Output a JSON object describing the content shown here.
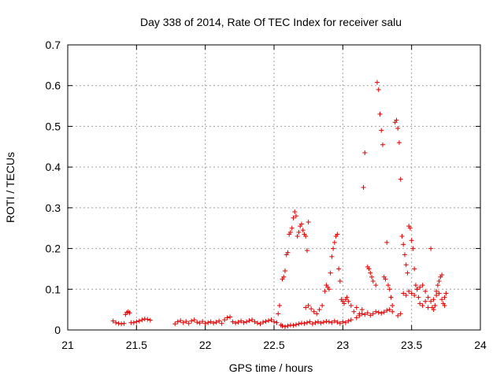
{
  "chart_data": {
    "type": "scatter",
    "title": "Day 338 of 2014, Rate Of TEC Index for receiver salu",
    "xlabel": "GPS time / hours",
    "ylabel": "ROTI / TECUs",
    "xlim": [
      21,
      24
    ],
    "ylim": [
      0,
      0.7
    ],
    "xticks": [
      "21",
      "21.5",
      "22",
      "22.5",
      "23",
      "23.5",
      "24"
    ],
    "yticks": [
      "0",
      "0.1",
      "0.2",
      "0.3",
      "0.4",
      "0.5",
      "0.6",
      "0.7"
    ],
    "grid": true,
    "marker": "+",
    "marker_color": "#e00000",
    "series": [
      {
        "name": "ROTI",
        "points": [
          [
            21.33,
            0.022
          ],
          [
            21.35,
            0.018
          ],
          [
            21.37,
            0.016
          ],
          [
            21.39,
            0.015
          ],
          [
            21.41,
            0.016
          ],
          [
            21.42,
            0.038
          ],
          [
            21.43,
            0.043
          ],
          [
            21.44,
            0.045
          ],
          [
            21.45,
            0.042
          ],
          [
            21.46,
            0.018
          ],
          [
            21.48,
            0.018
          ],
          [
            21.5,
            0.02
          ],
          [
            21.52,
            0.022
          ],
          [
            21.54,
            0.025
          ],
          [
            21.56,
            0.027
          ],
          [
            21.58,
            0.026
          ],
          [
            21.6,
            0.024
          ],
          [
            21.78,
            0.015
          ],
          [
            21.8,
            0.02
          ],
          [
            21.82,
            0.023
          ],
          [
            21.84,
            0.018
          ],
          [
            21.86,
            0.021
          ],
          [
            21.88,
            0.016
          ],
          [
            21.9,
            0.022
          ],
          [
            21.92,
            0.025
          ],
          [
            21.94,
            0.019
          ],
          [
            21.96,
            0.017
          ],
          [
            21.98,
            0.021
          ],
          [
            22.0,
            0.016
          ],
          [
            22.02,
            0.018
          ],
          [
            22.04,
            0.02
          ],
          [
            22.06,
            0.017
          ],
          [
            22.08,
            0.019
          ],
          [
            22.1,
            0.022
          ],
          [
            22.12,
            0.016
          ],
          [
            22.14,
            0.025
          ],
          [
            22.16,
            0.03
          ],
          [
            22.18,
            0.032
          ],
          [
            22.2,
            0.02
          ],
          [
            22.22,
            0.017
          ],
          [
            22.24,
            0.019
          ],
          [
            22.26,
            0.022
          ],
          [
            22.28,
            0.018
          ],
          [
            22.3,
            0.02
          ],
          [
            22.32,
            0.023
          ],
          [
            22.34,
            0.025
          ],
          [
            22.36,
            0.02
          ],
          [
            22.38,
            0.017
          ],
          [
            22.4,
            0.015
          ],
          [
            22.42,
            0.019
          ],
          [
            22.44,
            0.021
          ],
          [
            22.46,
            0.023
          ],
          [
            22.48,
            0.025
          ],
          [
            22.5,
            0.02
          ],
          [
            22.52,
            0.018
          ],
          [
            22.53,
            0.04
          ],
          [
            22.54,
            0.06
          ],
          [
            22.55,
            0.012
          ],
          [
            22.56,
            0.125
          ],
          [
            22.57,
            0.13
          ],
          [
            22.58,
            0.145
          ],
          [
            22.59,
            0.185
          ],
          [
            22.6,
            0.19
          ],
          [
            22.61,
            0.235
          ],
          [
            22.62,
            0.24
          ],
          [
            22.63,
            0.25
          ],
          [
            22.64,
            0.275
          ],
          [
            22.65,
            0.29
          ],
          [
            22.66,
            0.28
          ],
          [
            22.67,
            0.23
          ],
          [
            22.68,
            0.24
          ],
          [
            22.69,
            0.255
          ],
          [
            22.7,
            0.26
          ],
          [
            22.71,
            0.245
          ],
          [
            22.72,
            0.235
          ],
          [
            22.73,
            0.23
          ],
          [
            22.74,
            0.195
          ],
          [
            22.75,
            0.265
          ],
          [
            22.56,
            0.01
          ],
          [
            22.58,
            0.008
          ],
          [
            22.6,
            0.01
          ],
          [
            22.62,
            0.012
          ],
          [
            22.64,
            0.011
          ],
          [
            22.66,
            0.013
          ],
          [
            22.68,
            0.015
          ],
          [
            22.7,
            0.017
          ],
          [
            22.72,
            0.016
          ],
          [
            22.74,
            0.018
          ],
          [
            22.76,
            0.02
          ],
          [
            22.78,
            0.015
          ],
          [
            22.8,
            0.018
          ],
          [
            22.82,
            0.02
          ],
          [
            22.84,
            0.017
          ],
          [
            22.86,
            0.019
          ],
          [
            22.88,
            0.021
          ],
          [
            22.9,
            0.02
          ],
          [
            22.92,
            0.018
          ],
          [
            22.94,
            0.022
          ],
          [
            22.96,
            0.019
          ],
          [
            22.98,
            0.016
          ],
          [
            23.0,
            0.02
          ],
          [
            23.02,
            0.018
          ],
          [
            23.04,
            0.022
          ],
          [
            23.06,
            0.025
          ],
          [
            22.73,
            0.055
          ],
          [
            22.75,
            0.06
          ],
          [
            22.77,
            0.052
          ],
          [
            22.79,
            0.045
          ],
          [
            22.81,
            0.04
          ],
          [
            22.83,
            0.05
          ],
          [
            22.85,
            0.06
          ],
          [
            22.87,
            0.095
          ],
          [
            22.88,
            0.11
          ],
          [
            22.89,
            0.105
          ],
          [
            22.9,
            0.1
          ],
          [
            22.91,
            0.14
          ],
          [
            22.92,
            0.18
          ],
          [
            22.93,
            0.2
          ],
          [
            22.94,
            0.215
          ],
          [
            22.95,
            0.23
          ],
          [
            22.96,
            0.235
          ],
          [
            22.97,
            0.15
          ],
          [
            22.98,
            0.12
          ],
          [
            22.99,
            0.075
          ],
          [
            23.0,
            0.07
          ],
          [
            23.01,
            0.065
          ],
          [
            23.02,
            0.075
          ],
          [
            23.03,
            0.08
          ],
          [
            23.04,
            0.07
          ],
          [
            23.06,
            0.06
          ],
          [
            23.08,
            0.045
          ],
          [
            23.1,
            0.055
          ],
          [
            23.12,
            0.04
          ],
          [
            23.14,
            0.05
          ],
          [
            23.15,
            0.35
          ],
          [
            23.16,
            0.435
          ],
          [
            23.18,
            0.155
          ],
          [
            23.19,
            0.15
          ],
          [
            23.2,
            0.14
          ],
          [
            23.21,
            0.13
          ],
          [
            23.22,
            0.12
          ],
          [
            23.24,
            0.11
          ],
          [
            23.25,
            0.608
          ],
          [
            23.26,
            0.59
          ],
          [
            23.27,
            0.53
          ],
          [
            23.28,
            0.49
          ],
          [
            23.29,
            0.455
          ],
          [
            23.3,
            0.13
          ],
          [
            23.31,
            0.125
          ],
          [
            23.32,
            0.215
          ],
          [
            23.33,
            0.11
          ],
          [
            23.34,
            0.1
          ],
          [
            23.35,
            0.08
          ],
          [
            23.36,
            0.06
          ],
          [
            23.38,
            0.51
          ],
          [
            23.39,
            0.515
          ],
          [
            23.4,
            0.495
          ],
          [
            23.41,
            0.46
          ],
          [
            23.42,
            0.37
          ],
          [
            23.43,
            0.23
          ],
          [
            23.44,
            0.21
          ],
          [
            23.45,
            0.185
          ],
          [
            23.46,
            0.16
          ],
          [
            23.47,
            0.14
          ],
          [
            23.48,
            0.255
          ],
          [
            23.49,
            0.25
          ],
          [
            23.5,
            0.22
          ],
          [
            23.51,
            0.2
          ],
          [
            23.52,
            0.15
          ],
          [
            23.53,
            0.11
          ],
          [
            23.54,
            0.1
          ],
          [
            23.55,
            0.08
          ],
          [
            23.56,
            0.065
          ],
          [
            23.58,
            0.06
          ],
          [
            23.6,
            0.07
          ],
          [
            23.62,
            0.055
          ],
          [
            23.64,
            0.2
          ],
          [
            23.65,
            0.055
          ],
          [
            23.66,
            0.05
          ],
          [
            23.67,
            0.06
          ],
          [
            23.68,
            0.095
          ],
          [
            23.69,
            0.11
          ],
          [
            23.7,
            0.12
          ],
          [
            23.71,
            0.13
          ],
          [
            23.72,
            0.135
          ],
          [
            23.73,
            0.065
          ],
          [
            23.74,
            0.08
          ],
          [
            23.75,
            0.09
          ],
          [
            23.1,
            0.03
          ],
          [
            23.12,
            0.035
          ],
          [
            23.14,
            0.04
          ],
          [
            23.16,
            0.038
          ],
          [
            23.18,
            0.042
          ],
          [
            23.2,
            0.036
          ],
          [
            23.22,
            0.04
          ],
          [
            23.24,
            0.045
          ],
          [
            23.26,
            0.043
          ],
          [
            23.28,
            0.041
          ],
          [
            23.3,
            0.044
          ],
          [
            23.32,
            0.048
          ],
          [
            23.34,
            0.05
          ],
          [
            23.36,
            0.045
          ],
          [
            23.4,
            0.035
          ],
          [
            23.42,
            0.04
          ],
          [
            23.44,
            0.09
          ],
          [
            23.46,
            0.085
          ],
          [
            23.48,
            0.095
          ],
          [
            23.5,
            0.09
          ],
          [
            23.52,
            0.085
          ],
          [
            23.54,
            0.1
          ],
          [
            23.56,
            0.105
          ],
          [
            23.58,
            0.11
          ],
          [
            23.6,
            0.095
          ],
          [
            23.62,
            0.08
          ],
          [
            23.64,
            0.07
          ],
          [
            23.66,
            0.075
          ],
          [
            23.68,
            0.085
          ],
          [
            23.7,
            0.09
          ],
          [
            23.72,
            0.075
          ],
          [
            23.74,
            0.06
          ]
        ]
      }
    ]
  }
}
